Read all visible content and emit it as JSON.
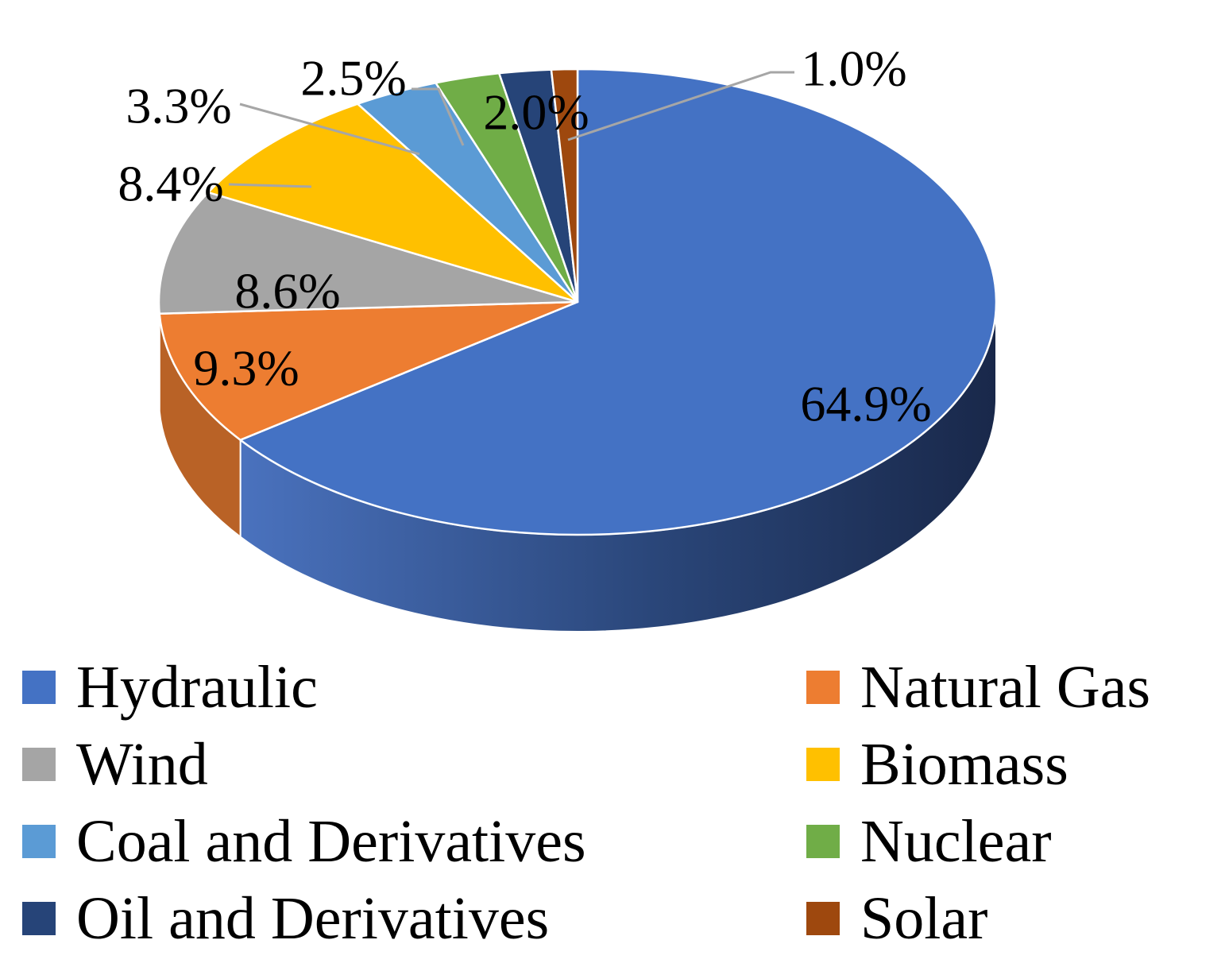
{
  "chart_data": {
    "type": "pie",
    "title": "",
    "categories": [
      "Hydraulic",
      "Natural Gas",
      "Wind",
      "Biomass",
      "Coal and Derivatives",
      "Nuclear",
      "Oil and Derivatives",
      "Solar"
    ],
    "values": [
      64.9,
      9.3,
      8.6,
      8.4,
      3.3,
      2.5,
      2.0,
      1.0
    ],
    "value_labels": [
      "64.9%",
      "9.3%",
      "8.6%",
      "8.4%",
      "3.3%",
      "2.5%",
      "2.0%",
      "1.0%"
    ],
    "colors": [
      "#4472C4",
      "#ED7D31",
      "#A5A5A5",
      "#FFC000",
      "#5B9BD5",
      "#70AD47",
      "#264478",
      "#9E480E"
    ],
    "legend_position": "bottom",
    "style": "3d"
  }
}
